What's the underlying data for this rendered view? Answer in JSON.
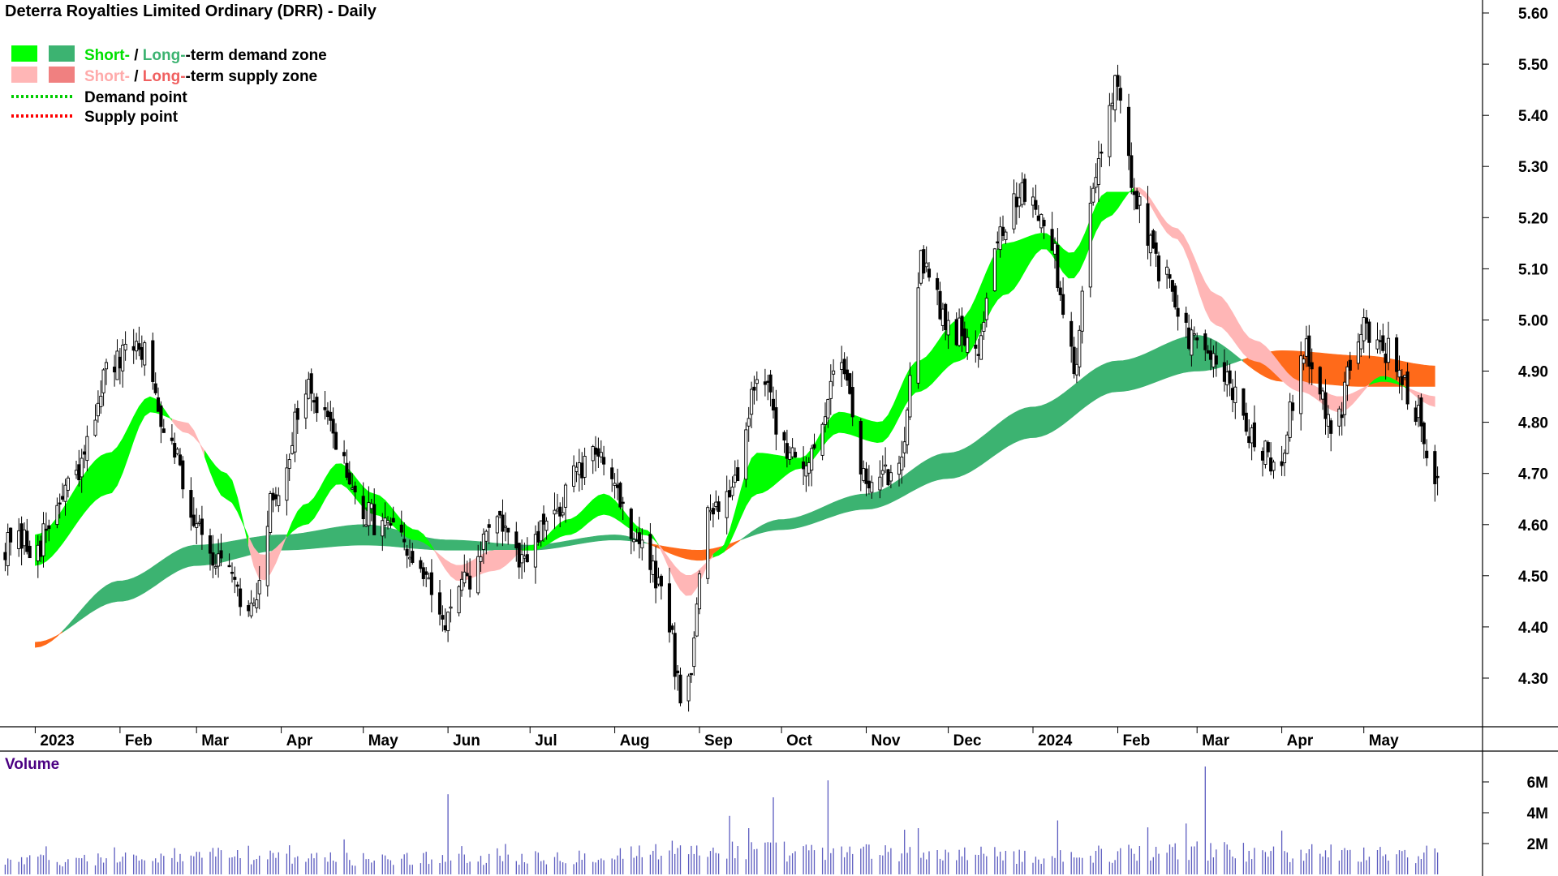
{
  "chart_data": {
    "type": "candlestick",
    "title": "Deterra Royalties Limited Ordinary (DRR) - Daily",
    "price_axis": {
      "ticks": [
        "5.60",
        "5.50",
        "5.40",
        "5.30",
        "5.20",
        "5.10",
        "5.00",
        "4.90",
        "4.80",
        "4.70",
        "4.60",
        "4.50",
        "4.40",
        "4.30"
      ],
      "ylim": [
        4.22,
        5.62
      ]
    },
    "date_axis": {
      "labels": [
        "2023",
        "Feb",
        "Mar",
        "Apr",
        "May",
        "Jun",
        "Jul",
        "Aug",
        "Sep",
        "Oct",
        "Nov",
        "Dec",
        "2024",
        "Feb",
        "Mar",
        "Apr",
        "May"
      ]
    },
    "legend": {
      "short_label": "Short-",
      "slash": " / ",
      "long_label": "Long-",
      "demand_suffix": "-term demand zone",
      "supply_suffix": "-term supply zone",
      "demand_point": "Demand point",
      "supply_point": "Supply point",
      "colors": {
        "short_demand": "#00ff00",
        "long_demand": "#3cb371",
        "short_supply": "#ffb6b6",
        "long_supply": "#f08080",
        "demand_point": "#00cc00",
        "supply_point": "#ff0000",
        "long_supply_band": "#ff6a1a"
      }
    },
    "close_anchors": [
      [
        "2023-01-01",
        4.56
      ],
      [
        "2023-01-15",
        4.68
      ],
      [
        "2023-01-28",
        4.9
      ],
      [
        "2023-02-08",
        4.95
      ],
      [
        "2023-02-18",
        4.8
      ],
      [
        "2023-02-28",
        4.62
      ],
      [
        "2023-03-10",
        4.52
      ],
      [
        "2023-03-20",
        4.42
      ],
      [
        "2023-03-30",
        4.66
      ],
      [
        "2023-04-10",
        4.86
      ],
      [
        "2023-04-20",
        4.78
      ],
      [
        "2023-04-30",
        4.62
      ],
      [
        "2023-05-10",
        4.6
      ],
      [
        "2023-05-20",
        4.52
      ],
      [
        "2023-05-30",
        4.42
      ],
      [
        "2023-06-08",
        4.48
      ],
      [
        "2023-06-18",
        4.62
      ],
      [
        "2023-06-28",
        4.52
      ],
      [
        "2023-07-08",
        4.6
      ],
      [
        "2023-07-18",
        4.7
      ],
      [
        "2023-07-28",
        4.74
      ],
      [
        "2023-08-08",
        4.58
      ],
      [
        "2023-08-18",
        4.48
      ],
      [
        "2023-08-26",
        4.26
      ],
      [
        "2023-09-05",
        4.62
      ],
      [
        "2023-09-15",
        4.7
      ],
      [
        "2023-09-22",
        4.9
      ],
      [
        "2023-10-02",
        4.76
      ],
      [
        "2023-10-12",
        4.72
      ],
      [
        "2023-10-22",
        4.94
      ],
      [
        "2023-11-01",
        4.68
      ],
      [
        "2023-11-12",
        4.7
      ],
      [
        "2023-11-22",
        5.12
      ],
      [
        "2023-12-02",
        4.98
      ],
      [
        "2023-12-12",
        4.96
      ],
      [
        "2023-12-20",
        5.18
      ],
      [
        "2023-12-30",
        5.26
      ],
      [
        "2024-01-06",
        5.18
      ],
      [
        "2024-01-16",
        4.92
      ],
      [
        "2024-01-24",
        5.3
      ],
      [
        "2024-01-31",
        5.46
      ],
      [
        "2024-02-08",
        5.22
      ],
      [
        "2024-02-18",
        5.08
      ],
      [
        "2024-02-28",
        4.96
      ],
      [
        "2024-03-10",
        4.9
      ],
      [
        "2024-03-20",
        4.78
      ],
      [
        "2024-03-30",
        4.72
      ],
      [
        "2024-04-10",
        4.94
      ],
      [
        "2024-04-20",
        4.8
      ],
      [
        "2024-04-30",
        4.98
      ],
      [
        "2024-05-10",
        4.94
      ],
      [
        "2024-05-20",
        4.82
      ],
      [
        "2024-05-28",
        4.68
      ]
    ],
    "short_zone_anchors": [
      [
        "2023-01-01",
        4.52,
        4.58
      ],
      [
        "2023-01-28",
        4.66,
        4.74
      ],
      [
        "2023-02-12",
        4.82,
        4.85
      ],
      [
        "2023-02-25",
        4.8,
        4.78
      ],
      [
        "2023-03-12",
        4.65,
        4.7
      ],
      [
        "2023-03-25",
        4.54,
        4.49
      ],
      [
        "2023-04-10",
        4.6,
        4.64
      ],
      [
        "2023-04-22",
        4.68,
        4.72
      ],
      [
        "2023-05-05",
        4.62,
        4.66
      ],
      [
        "2023-05-20",
        4.57,
        4.59
      ],
      [
        "2023-06-05",
        4.52,
        4.49
      ],
      [
        "2023-06-18",
        4.55,
        4.51
      ],
      [
        "2023-07-02",
        4.55,
        4.56
      ],
      [
        "2023-07-15",
        4.58,
        4.61
      ],
      [
        "2023-07-28",
        4.62,
        4.66
      ],
      [
        "2023-08-12",
        4.58,
        4.59
      ],
      [
        "2023-08-28",
        4.5,
        4.46
      ],
      [
        "2023-09-08",
        4.54,
        4.55
      ],
      [
        "2023-09-22",
        4.66,
        4.74
      ],
      [
        "2023-10-08",
        4.71,
        4.73
      ],
      [
        "2023-10-22",
        4.78,
        4.82
      ],
      [
        "2023-11-06",
        4.76,
        4.8
      ],
      [
        "2023-11-20",
        4.86,
        4.92
      ],
      [
        "2023-12-05",
        4.92,
        5.0
      ],
      [
        "2023-12-22",
        5.05,
        5.15
      ],
      [
        "2024-01-05",
        5.14,
        5.17
      ],
      [
        "2024-01-15",
        5.08,
        5.13
      ],
      [
        "2024-01-28",
        5.2,
        5.25
      ],
      [
        "2024-02-08",
        5.26,
        5.25
      ],
      [
        "2024-02-22",
        5.18,
        5.16
      ],
      [
        "2024-03-08",
        5.05,
        4.99
      ],
      [
        "2024-03-22",
        4.96,
        4.92
      ],
      [
        "2024-04-08",
        4.88,
        4.86
      ],
      [
        "2024-04-22",
        4.85,
        4.82
      ],
      [
        "2024-05-08",
        4.88,
        4.89
      ],
      [
        "2024-05-28",
        4.85,
        4.83
      ]
    ],
    "long_zone_anchors": [
      [
        "2023-01-01",
        4.37,
        4.36
      ],
      [
        "2023-02-01",
        4.45,
        4.49
      ],
      [
        "2023-03-01",
        4.52,
        4.56
      ],
      [
        "2023-04-01",
        4.55,
        4.58
      ],
      [
        "2023-05-01",
        4.56,
        4.6
      ],
      [
        "2023-06-01",
        4.55,
        4.57
      ],
      [
        "2023-07-01",
        4.55,
        4.56
      ],
      [
        "2023-08-01",
        4.57,
        4.58
      ],
      [
        "2023-09-01",
        4.55,
        4.53
      ],
      [
        "2023-10-01",
        4.59,
        4.61
      ],
      [
        "2023-11-01",
        4.63,
        4.66
      ],
      [
        "2023-12-01",
        4.69,
        4.74
      ],
      [
        "2024-01-01",
        4.77,
        4.83
      ],
      [
        "2024-02-01",
        4.86,
        4.92
      ],
      [
        "2024-03-01",
        4.9,
        4.97
      ],
      [
        "2024-04-01",
        4.94,
        4.88
      ],
      [
        "2024-05-01",
        4.93,
        4.87
      ],
      [
        "2024-05-28",
        4.91,
        4.87
      ]
    ],
    "volume": {
      "title": "Volume",
      "ticks": [
        "6M",
        "4M",
        "2M"
      ],
      "ylim": [
        0,
        7000000
      ],
      "anchors": [
        [
          "2023-01-01",
          900000
        ],
        [
          "2023-03-01",
          1200000
        ],
        [
          "2023-05-01",
          1000000
        ],
        [
          "2023-07-01",
          1100000
        ],
        [
          "2023-09-01",
          1600000
        ],
        [
          "2023-11-01",
          1400000
        ],
        [
          "2024-01-01",
          1200000
        ],
        [
          "2024-03-01",
          1500000
        ],
        [
          "2024-05-28",
          1300000
        ]
      ],
      "spikes": [
        [
          "2023-06-01",
          5200000
        ],
        [
          "2023-09-12",
          3800000
        ],
        [
          "2023-09-28",
          5000000
        ],
        [
          "2023-10-18",
          6100000
        ],
        [
          "2023-09-19",
          3000000
        ],
        [
          "2024-02-26",
          3300000
        ],
        [
          "2024-03-04",
          7000000
        ],
        [
          "2023-11-20",
          3000000
        ],
        [
          "2024-01-10",
          3500000
        ]
      ]
    }
  }
}
